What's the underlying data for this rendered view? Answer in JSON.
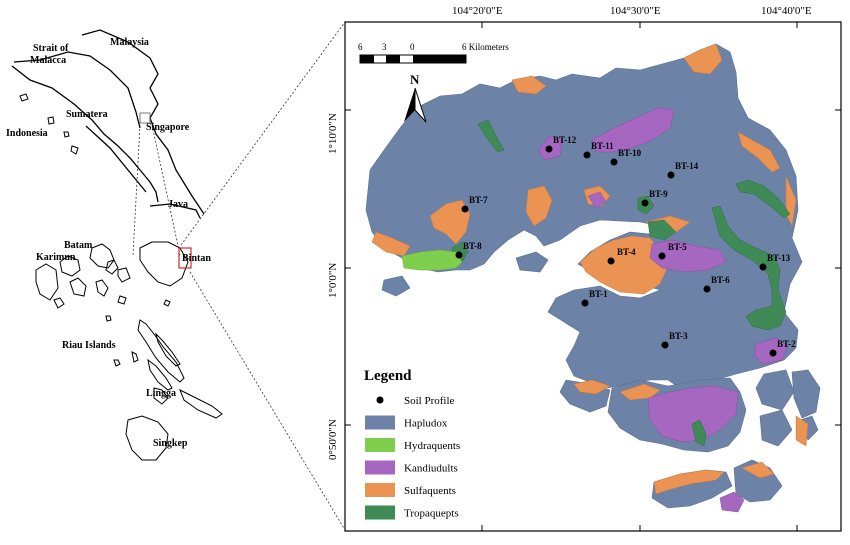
{
  "inset_labels": {
    "malaysia": "Malaysia",
    "strait": "Strait of\nMalacca",
    "strait_line1": "Strait of",
    "strait_line2": "Malacca",
    "indonesia": "Indonesia",
    "sumatera": "Sumatera",
    "singapore": "Singapore",
    "java": "Java",
    "batam": "Batam",
    "karimun": "Karimun",
    "bintan": "Bintan",
    "riau": "Riau Islands",
    "lingga": "Lingga",
    "singkep": "Singkep"
  },
  "coords": {
    "top": [
      "104°20'0\"E",
      "104°30'0\"E",
      "104°40'0\"E"
    ],
    "left": [
      "1°10'0\"N",
      "1°0'0\"N",
      "0°50'0\"N"
    ]
  },
  "scale_bar": {
    "ticks": [
      "6",
      "3",
      "0",
      "6 Kilometers"
    ]
  },
  "north_arrow": {
    "label": "N"
  },
  "soil_profiles": [
    {
      "id": "BT-1"
    },
    {
      "id": "BT-2"
    },
    {
      "id": "BT-3"
    },
    {
      "id": "BT-4"
    },
    {
      "id": "BT-5"
    },
    {
      "id": "BT-6"
    },
    {
      "id": "BT-7"
    },
    {
      "id": "BT-8"
    },
    {
      "id": "BT-9"
    },
    {
      "id": "BT-10"
    },
    {
      "id": "BT-11"
    },
    {
      "id": "BT-12"
    },
    {
      "id": "BT-13"
    },
    {
      "id": "BT-14"
    }
  ],
  "legend": {
    "title": "Legend",
    "items": [
      {
        "label": "Soil Profile",
        "color": "#000000",
        "kind": "point"
      },
      {
        "label": "Hapludox",
        "color": "#6c82a6",
        "kind": "fill"
      },
      {
        "label": "Hydraquents",
        "color": "#7fcf4c",
        "kind": "fill"
      },
      {
        "label": "Kandiudults",
        "color": "#a667c0",
        "kind": "fill"
      },
      {
        "label": "Sulfaquents",
        "color": "#eb9352",
        "kind": "fill"
      },
      {
        "label": "Tropaquepts",
        "color": "#3f8a57",
        "kind": "fill"
      }
    ]
  },
  "colors": {
    "hapludox": "#6c82a6",
    "hydraquents": "#7fcf4c",
    "kandiudults": "#a667c0",
    "sulfaquents": "#eb9352",
    "tropaquepts": "#3f8a57",
    "inset_marker": "#d62828"
  }
}
